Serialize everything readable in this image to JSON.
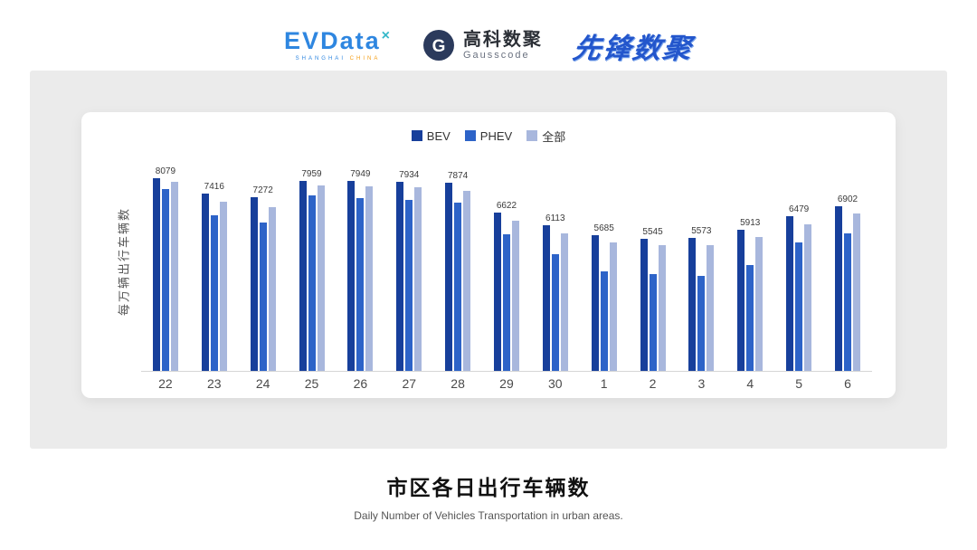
{
  "header": {
    "evdata": {
      "name": "EVData",
      "mark": "×",
      "sub1": "SHANGHAI",
      "sub2": "CHINA"
    },
    "gausscode": {
      "name": "高科数聚",
      "sub": "Gausscode",
      "icon_letter": "G",
      "icon_color": "#2b3a5c"
    },
    "pioneer": {
      "name": "先锋数聚"
    }
  },
  "chart_data": {
    "type": "bar",
    "categories": [
      "22",
      "23",
      "24",
      "25",
      "26",
      "27",
      "28",
      "29",
      "30",
      "1",
      "2",
      "3",
      "4",
      "5",
      "6"
    ],
    "series": [
      {
        "name": "BEV",
        "color": "#173f9b",
        "values": [
          8079,
          7416,
          7272,
          7959,
          7949,
          7934,
          7874,
          6622,
          6113,
          5685,
          5545,
          5573,
          5913,
          6479,
          6902
        ]
      },
      {
        "name": "PHEV",
        "color": "#2d63c8",
        "values": [
          7610,
          6520,
          6230,
          7360,
          7250,
          7150,
          7050,
          5720,
          4890,
          4160,
          4040,
          3990,
          4420,
          5380,
          5760
        ]
      },
      {
        "name": "全部",
        "color": "#a8b7dd",
        "values": [
          7930,
          7100,
          6880,
          7790,
          7720,
          7690,
          7560,
          6310,
          5780,
          5400,
          5260,
          5290,
          5610,
          6150,
          6600
        ]
      }
    ],
    "value_labels": [
      "8079",
      "7416",
      "7272",
      "7959",
      "7949",
      "7934",
      "7874",
      "6622",
      "6113",
      "5685",
      "5545",
      "5573",
      "5913",
      "6479",
      "6902"
    ],
    "ylabel": "每万辆出行车辆数",
    "xlabel": "",
    "ylim": [
      0,
      8800
    ],
    "grid": false,
    "legend_position": "top"
  },
  "footer": {
    "title": "市区各日出行车辆数",
    "subtitle": "Daily Number of Vehicles Transportation in urban areas."
  },
  "colors": {
    "panel_bg": "#ebebeb",
    "card_bg": "#ffffff",
    "axis_line": "#d6d6d6"
  }
}
